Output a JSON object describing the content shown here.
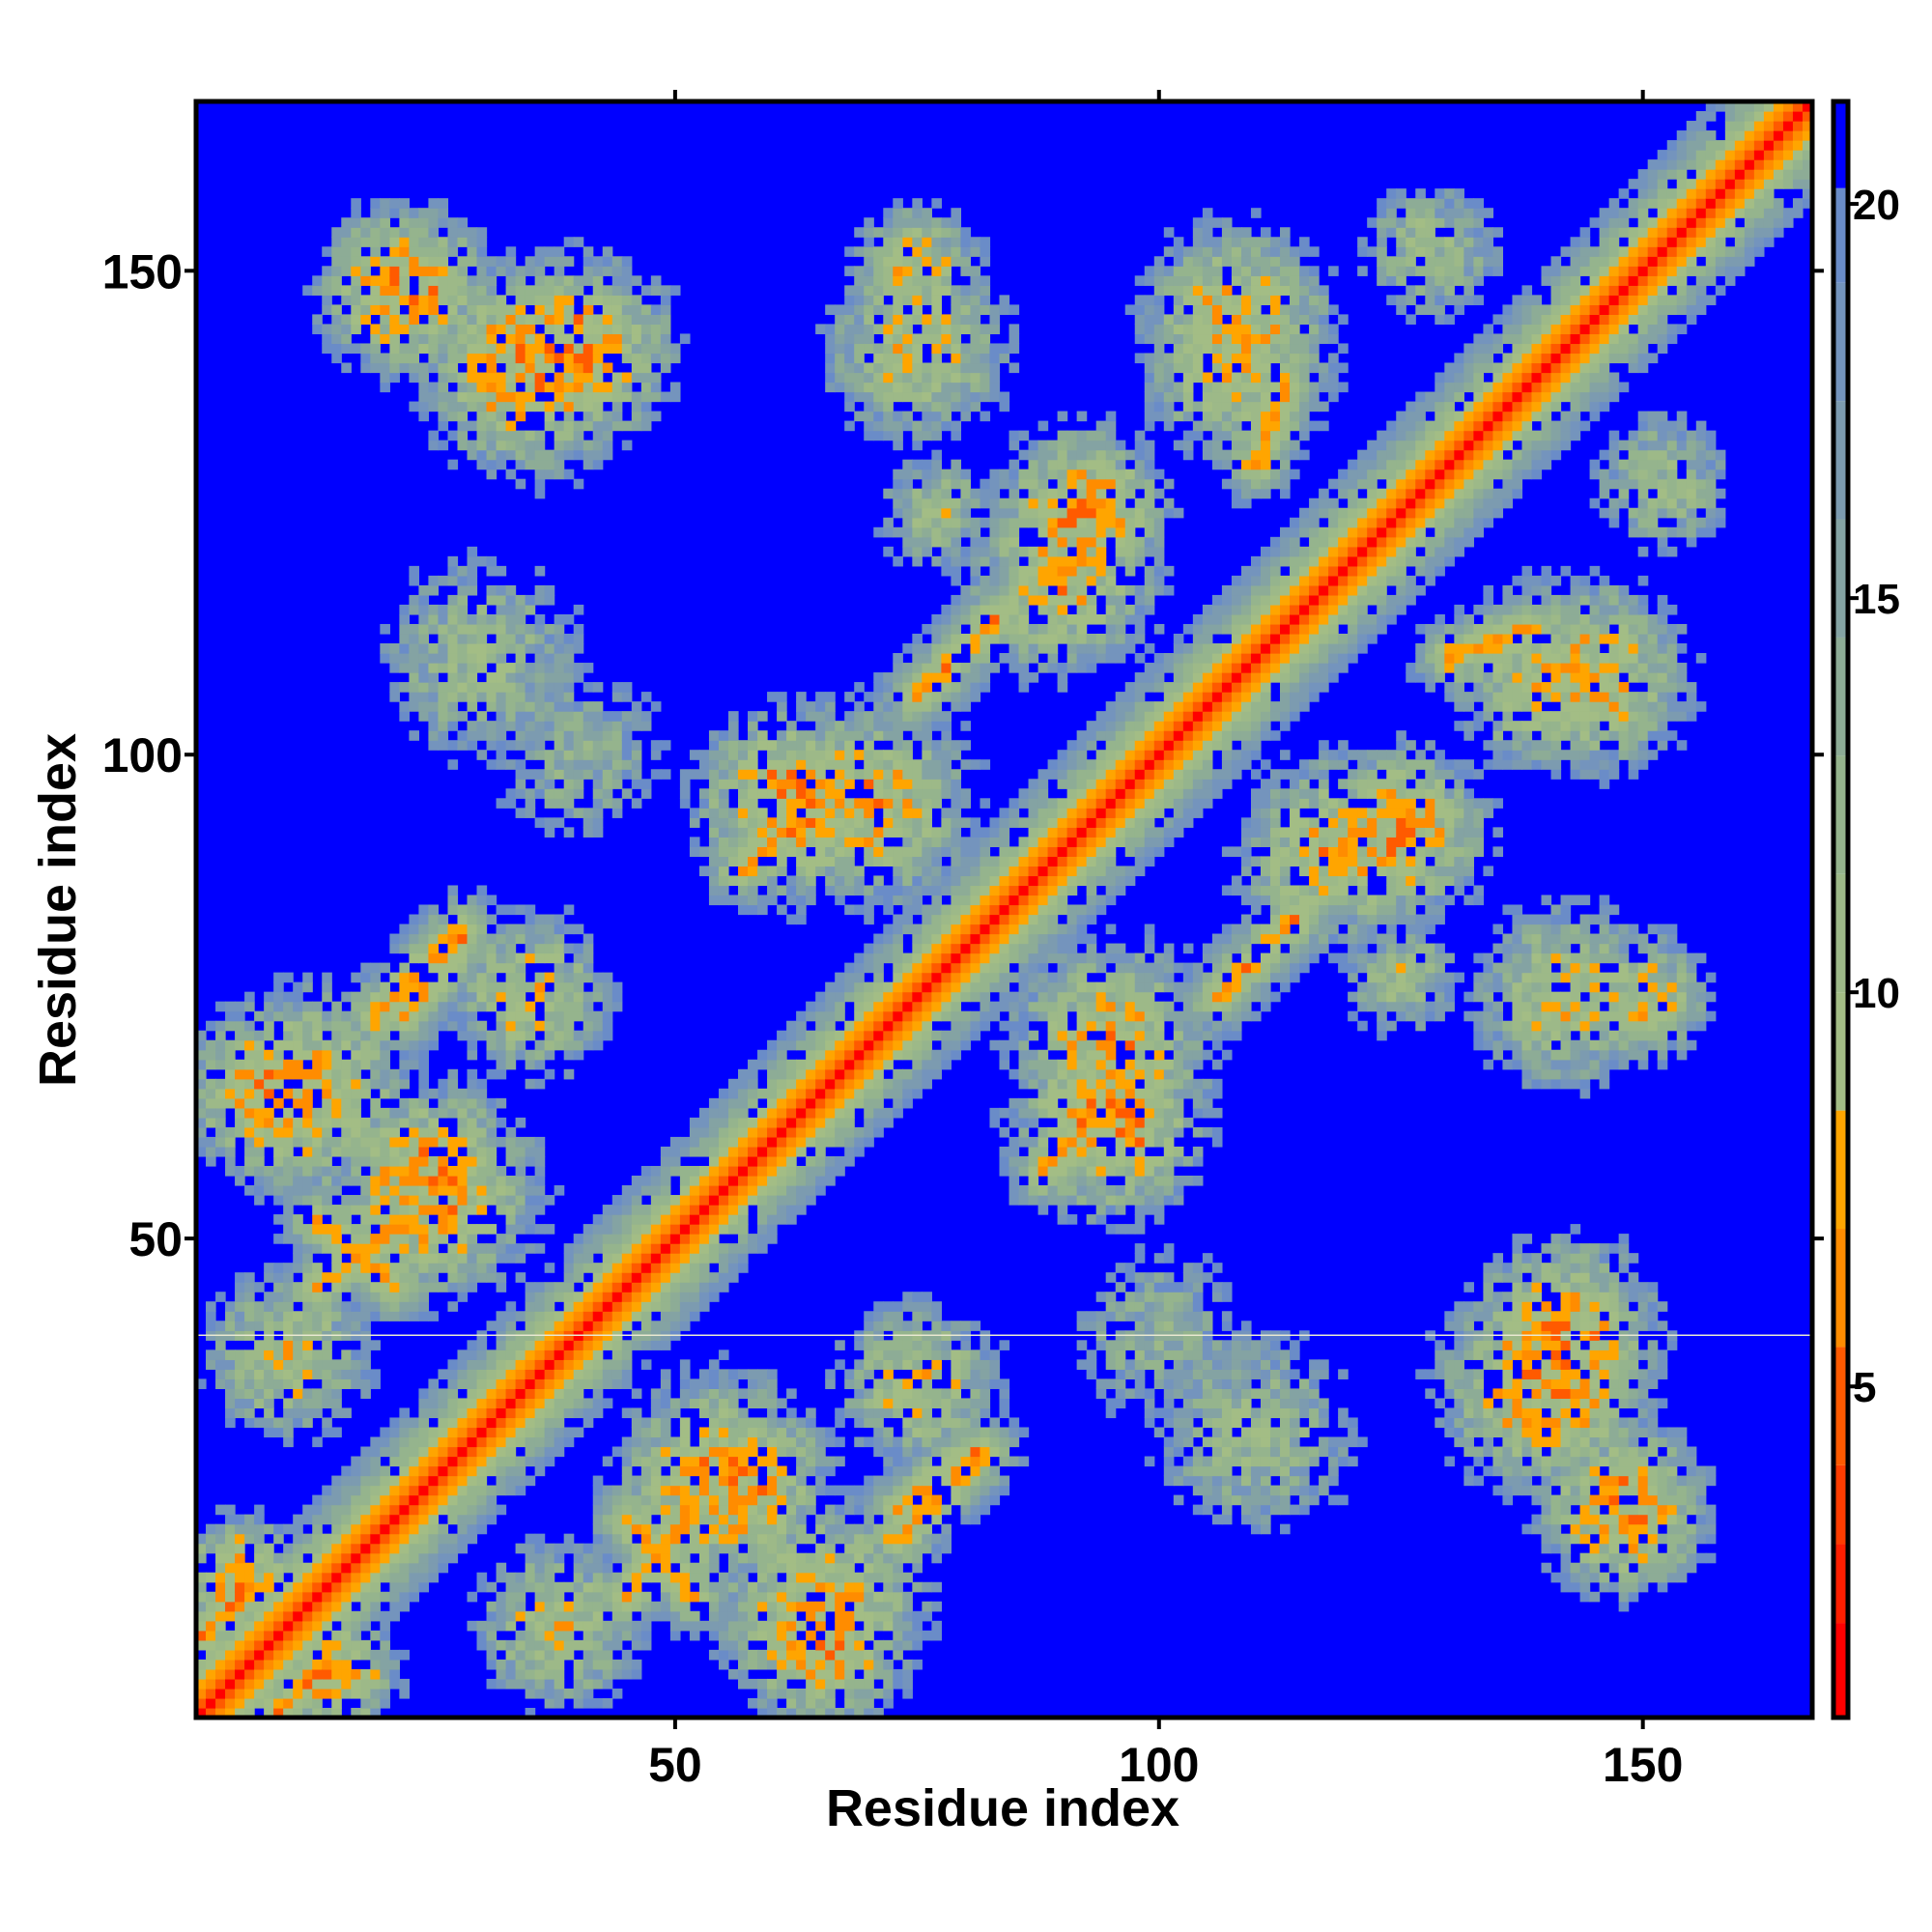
{
  "chart_data": {
    "type": "heatmap",
    "title": "",
    "xlabel": "Residue index",
    "ylabel": "Residue index",
    "n_residues": 167,
    "xlim": [
      0.5,
      167.5
    ],
    "ylim": [
      0.5,
      167.5
    ],
    "x_ticks": [
      50,
      100,
      150
    ],
    "y_ticks": [
      50,
      100,
      150
    ],
    "x_tick_labels": [
      "50",
      "100",
      "150"
    ],
    "y_tick_labels": [
      "50",
      "100",
      "150"
    ],
    "colorbar": {
      "range": [
        0.8,
        21.3
      ],
      "ticks": [
        5,
        10,
        15,
        20
      ],
      "tick_labels": [
        "5",
        "10",
        "15",
        "20"
      ],
      "levels": [
        {
          "max": 2.0,
          "color": "#ff0000"
        },
        {
          "max": 3.0,
          "color": "#ff1e00"
        },
        {
          "max": 4.0,
          "color": "#ff3c00"
        },
        {
          "max": 5.5,
          "color": "#ff5a00"
        },
        {
          "max": 7.0,
          "color": "#ff8c00"
        },
        {
          "max": 8.5,
          "color": "#ffa500"
        },
        {
          "max": 10.0,
          "color": "#a3bd85"
        },
        {
          "max": 11.5,
          "color": "#9db988"
        },
        {
          "max": 13.0,
          "color": "#95b48d"
        },
        {
          "max": 14.5,
          "color": "#8dac96"
        },
        {
          "max": 16.0,
          "color": "#84a3a3"
        },
        {
          "max": 17.5,
          "color": "#7c9bb0"
        },
        {
          "max": 19.0,
          "color": "#7494bd"
        },
        {
          "max": 20.2,
          "color": "#6a8cc8"
        },
        {
          "max": 99,
          "color": "#0000ff"
        }
      ]
    },
    "value_units": "distance",
    "missing_row": 40,
    "structure": {
      "diagonal": {
        "base": 3.0,
        "slope": 1.5
      },
      "strand_pairs": [
        {
          "from": [
            13,
            52
          ],
          "to": [
            21,
            45
          ]
        },
        {
          "from": [
            19,
            73
          ],
          "to": [
            28,
            82
          ]
        },
        {
          "from": [
            22,
            73
          ],
          "to": [
            28,
            81
          ]
        },
        {
          "from": [
            75,
            106
          ],
          "to": [
            83,
            114
          ]
        },
        {
          "from": [
            110,
            130
          ],
          "to": [
            113,
            138
          ]
        },
        {
          "from": [
            57,
            88
          ],
          "to": [
            63,
            95
          ]
        },
        {
          "from": [
            45,
            13
          ],
          "to": [
            52,
            22
          ]
        },
        {
          "from": [
            9,
            1
          ],
          "to": [
            14,
            6
          ]
        }
      ],
      "contact_clusters": [
        {
          "center": [
            22,
            148
          ],
          "spread": 8,
          "min": 6
        },
        {
          "center": [
            40,
            142
          ],
          "spread": 9,
          "min": 6
        },
        {
          "center": [
            75,
            150
          ],
          "spread": 6,
          "min": 7
        },
        {
          "center": [
            77,
            125
          ],
          "spread": 6,
          "min": 10
        },
        {
          "center": [
            30,
            110
          ],
          "spread": 10,
          "min": 10
        },
        {
          "center": [
            62,
            95
          ],
          "spread": 9,
          "min": 6
        },
        {
          "center": [
            12,
            65
          ],
          "spread": 10,
          "min": 7
        },
        {
          "center": [
            35,
            75
          ],
          "spread": 8,
          "min": 8
        },
        {
          "center": [
            92,
            125
          ],
          "spread": 8,
          "min": 6
        },
        {
          "center": [
            108,
            145
          ],
          "spread": 9,
          "min": 7
        },
        {
          "center": [
            128,
            152
          ],
          "spread": 7,
          "min": 10
        },
        {
          "center": [
            10,
            38
          ],
          "spread": 8,
          "min": 8
        },
        {
          "center": [
            55,
            25
          ],
          "spread": 10,
          "min": 6
        },
        {
          "center": [
            65,
            8
          ],
          "spread": 8,
          "min": 6
        },
        {
          "center": [
            95,
            70
          ],
          "spread": 10,
          "min": 7
        },
        {
          "center": [
            140,
            35
          ],
          "spread": 10,
          "min": 6
        },
        {
          "center": [
            142,
            75
          ],
          "spread": 9,
          "min": 8
        },
        {
          "center": [
            140,
            108
          ],
          "spread": 9,
          "min": 8
        },
        {
          "center": [
            118,
            90
          ],
          "spread": 9,
          "min": 7
        },
        {
          "center": [
            100,
            40
          ],
          "spread": 9,
          "min": 12
        },
        {
          "center": [
            15,
            5
          ],
          "spread": 6,
          "min": 6
        }
      ]
    }
  }
}
